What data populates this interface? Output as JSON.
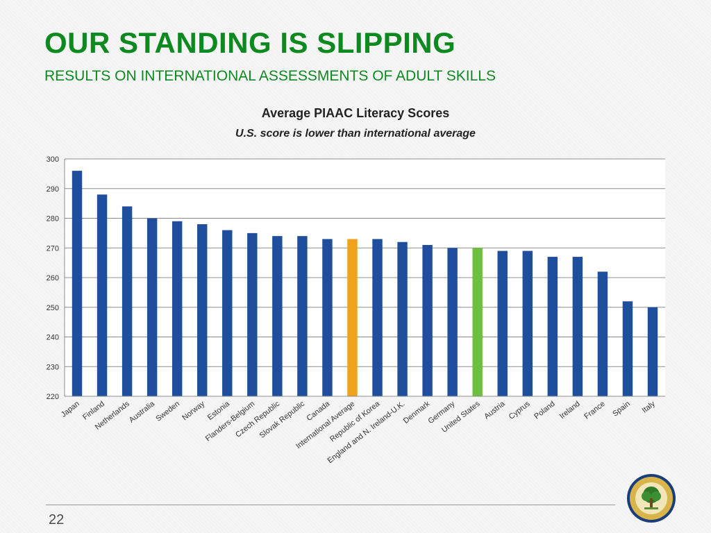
{
  "slide": {
    "title": "OUR STANDING IS SLIPPING",
    "subtitle": "RESULTS ON INTERNATIONAL ASSESSMENTS OF ADULT SKILLS",
    "page_number": "22"
  },
  "chart_data": {
    "type": "bar",
    "title": "Average PIAAC Literacy Scores",
    "subtitle": "U.S. score is lower than international average",
    "xlabel": "",
    "ylabel": "",
    "ylim": [
      220,
      300
    ],
    "yticks": [
      220,
      230,
      240,
      250,
      260,
      270,
      280,
      290,
      300
    ],
    "grid": true,
    "legend": "none",
    "categories": [
      "Japan",
      "Finland",
      "Netherlands",
      "Australia",
      "Sweden",
      "Norway",
      "Estonia",
      "Flanders-Belgium",
      "Czech Republic",
      "Slovak Republic",
      "Canada",
      "International Average",
      "Republic of Korea",
      "England and N. Ireland-U.K.",
      "Denmark",
      "Germany",
      "United States",
      "Austria",
      "Cyprus",
      "Poland",
      "Ireland",
      "France",
      "Spain",
      "Italy"
    ],
    "values": [
      296,
      288,
      284,
      280,
      279,
      278,
      276,
      275,
      274,
      274,
      273,
      273,
      273,
      272,
      271,
      270,
      270,
      269,
      269,
      267,
      267,
      262,
      252,
      250
    ],
    "colors": {
      "default": "#1f4e9c",
      "International Average": "#f0a11e",
      "United States": "#6cbf3f"
    }
  }
}
